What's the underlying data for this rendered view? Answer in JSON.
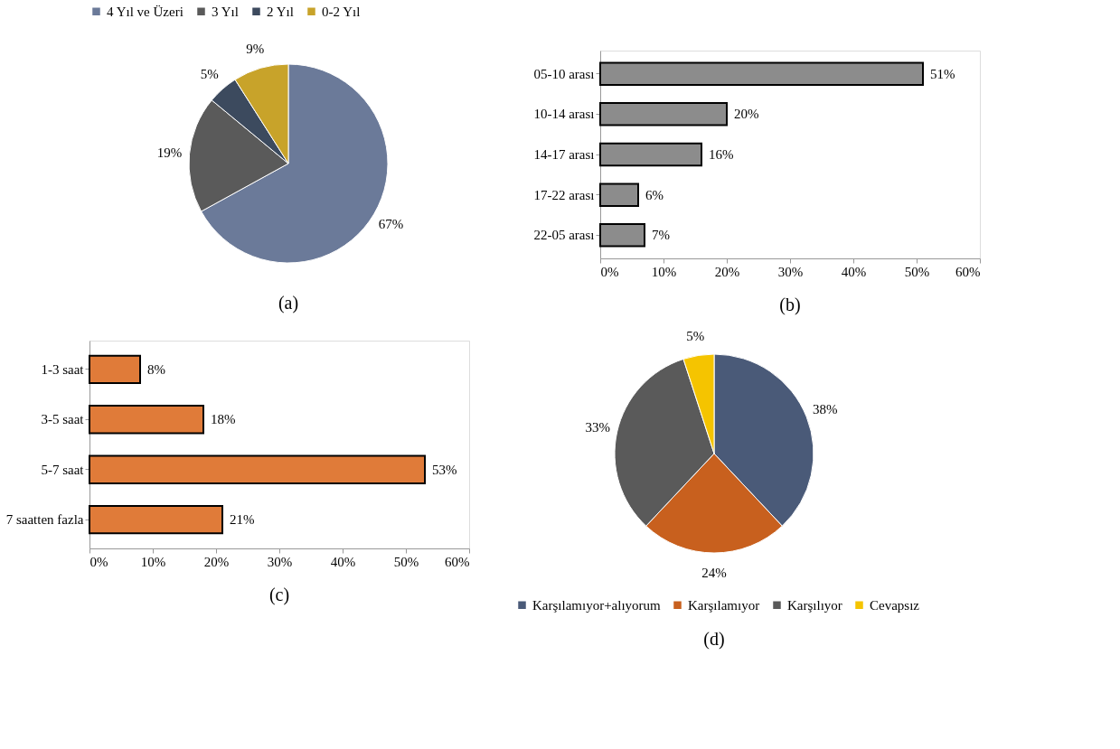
{
  "chart_data": [
    {
      "type": "pie",
      "title": "(a)",
      "categories": [
        "4 Yıl ve Üzeri",
        "3 Yıl",
        "2 Yıl",
        "0-2 Yıl"
      ],
      "values": [
        67,
        19,
        5,
        9
      ],
      "value_labels": [
        "67%",
        "19%",
        "5%",
        "9%"
      ],
      "colors": [
        "#6b7a99",
        "#5a5a5a",
        "#3c4a5e",
        "#c8a32a"
      ],
      "legend": "top"
    },
    {
      "type": "bar",
      "title": "(b)",
      "orientation": "horizontal",
      "categories": [
        "05-10 arası",
        "10-14 arası",
        "14-17 arası",
        "17-22 arası",
        "22-05 arası"
      ],
      "values": [
        51,
        20,
        16,
        6,
        7
      ],
      "value_labels": [
        "51%",
        "20%",
        "16%",
        "6%",
        "7%"
      ],
      "color": "#8c8c8c",
      "xlim": [
        0,
        60
      ],
      "xticks": [
        {
          "value": 0,
          "label": "0%"
        },
        {
          "value": 10,
          "label": "10%"
        },
        {
          "value": 20,
          "label": "20%"
        },
        {
          "value": 30,
          "label": "30%"
        },
        {
          "value": 40,
          "label": "40%"
        },
        {
          "value": 50,
          "label": "50%"
        },
        {
          "value": 60,
          "label": "60%"
        }
      ],
      "grid": false
    },
    {
      "type": "bar",
      "title": "(c)",
      "orientation": "horizontal",
      "categories": [
        "1-3 saat",
        "3-5 saat",
        "5-7 saat",
        "7 saatten fazla"
      ],
      "values": [
        8,
        18,
        53,
        21
      ],
      "value_labels": [
        "8%",
        "18%",
        "53%",
        "21%"
      ],
      "color": "#e07b39",
      "xlim": [
        0,
        60
      ],
      "xticks": [
        {
          "value": 0,
          "label": "0%"
        },
        {
          "value": 10,
          "label": "10%"
        },
        {
          "value": 20,
          "label": "20%"
        },
        {
          "value": 30,
          "label": "30%"
        },
        {
          "value": 40,
          "label": "40%"
        },
        {
          "value": 50,
          "label": "50%"
        },
        {
          "value": 60,
          "label": "60%"
        }
      ],
      "grid": false
    },
    {
      "type": "pie",
      "title": "(d)",
      "categories": [
        "Karşılamıyor+alıyorum",
        "Karşılamıyor",
        "Karşılıyor",
        "Cevapsız"
      ],
      "values": [
        38,
        24,
        33,
        5
      ],
      "value_labels": [
        "38%",
        "24%",
        "33%",
        "5%"
      ],
      "colors": [
        "#4a5a78",
        "#c8601e",
        "#5a5a5a",
        "#f5c400"
      ],
      "legend": "bottom"
    }
  ]
}
